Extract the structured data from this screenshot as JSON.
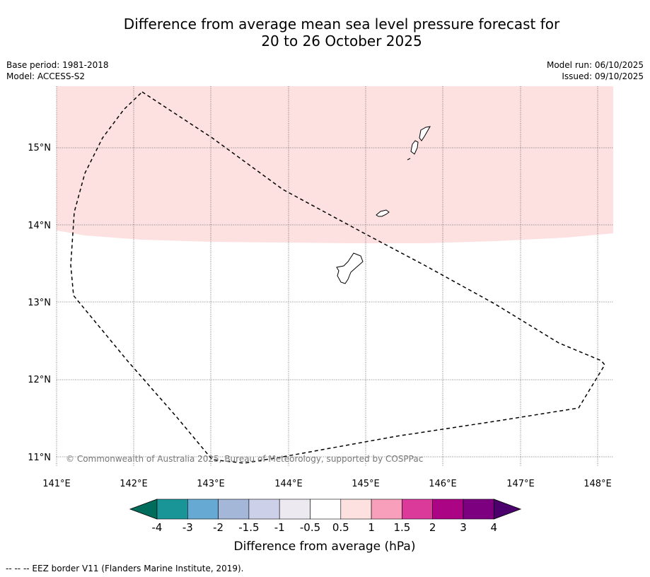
{
  "title": {
    "line1": "Difference from average mean sea level pressure forecast for",
    "line2": "20 to 26 October 2025"
  },
  "meta_left": {
    "base_period": "Base period: 1981-2018",
    "model": "Model: ACCESS-S2"
  },
  "meta_right": {
    "model_run": "Model run: 06/10/2025",
    "issued": "Issued: 09/10/2025"
  },
  "map": {
    "lon_labels": [
      "141°E",
      "142°E",
      "143°E",
      "144°E",
      "145°E",
      "146°E",
      "147°E",
      "148°E"
    ],
    "lat_labels": [
      "15°N",
      "14°N",
      "13°N",
      "12°N",
      "11°N"
    ],
    "copyright": "© Commonwealth of Australia 2025, Bureau of Meteorology, supported by COSPPac",
    "anomaly_band_color": "#fde0e0",
    "anomaly_band_class": "0.5 to 1"
  },
  "colorbar": {
    "colors": [
      "#006c5c",
      "#1a9597",
      "#66a9d2",
      "#a4b7d9",
      "#ccd0e8",
      "#eceaf0",
      "#ffffff",
      "#fde0e0",
      "#f8a0bb",
      "#dc3a9a",
      "#ab0485",
      "#7c007f",
      "#4b006d"
    ],
    "tick_labels": [
      "-4",
      "-3",
      "-2",
      "-1.5",
      "-1",
      "-0.5",
      "0.5",
      "1",
      "1.5",
      "2",
      "3",
      "4"
    ],
    "label": "Difference from average (hPa)"
  },
  "footnote": "--  --  -- EEZ border V11 (Flanders Marine Institute, 2019)."
}
